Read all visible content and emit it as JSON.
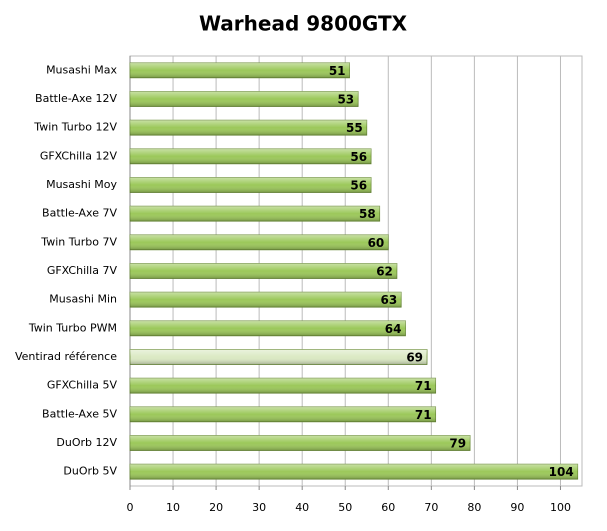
{
  "chart_data": {
    "type": "hbar",
    "title": "Warhead 9800GTX",
    "categories": [
      "Musashi Max",
      "Battle-Axe 12V",
      "Twin Turbo 12V",
      "GFXChilla 12V",
      "Musashi Moy",
      "Battle-Axe 7V",
      "Twin Turbo 7V",
      "GFXChilla 7V",
      "Musashi Min",
      "Twin Turbo PWM",
      "Ventirad référence",
      "GFXChilla 5V",
      "Battle-Axe 5V",
      "DuOrb 12V",
      "DuOrb 5V"
    ],
    "values": [
      51,
      53,
      55,
      56,
      56,
      58,
      60,
      62,
      63,
      64,
      69,
      71,
      71,
      79,
      104
    ],
    "colors": [
      "#9cc85a",
      "#9cc85a",
      "#9cc85a",
      "#9cc85a",
      "#9cc85a",
      "#9cc85a",
      "#9cc85a",
      "#9cc85a",
      "#9cc85a",
      "#9cc85a",
      "#dbe9c3",
      "#9cc85a",
      "#9cc85a",
      "#9cc85a",
      "#9cc85a"
    ],
    "xlim": [
      0,
      105
    ],
    "xticks": [
      0,
      10,
      20,
      30,
      40,
      50,
      60,
      70,
      80,
      90,
      100
    ],
    "grid": true
  }
}
